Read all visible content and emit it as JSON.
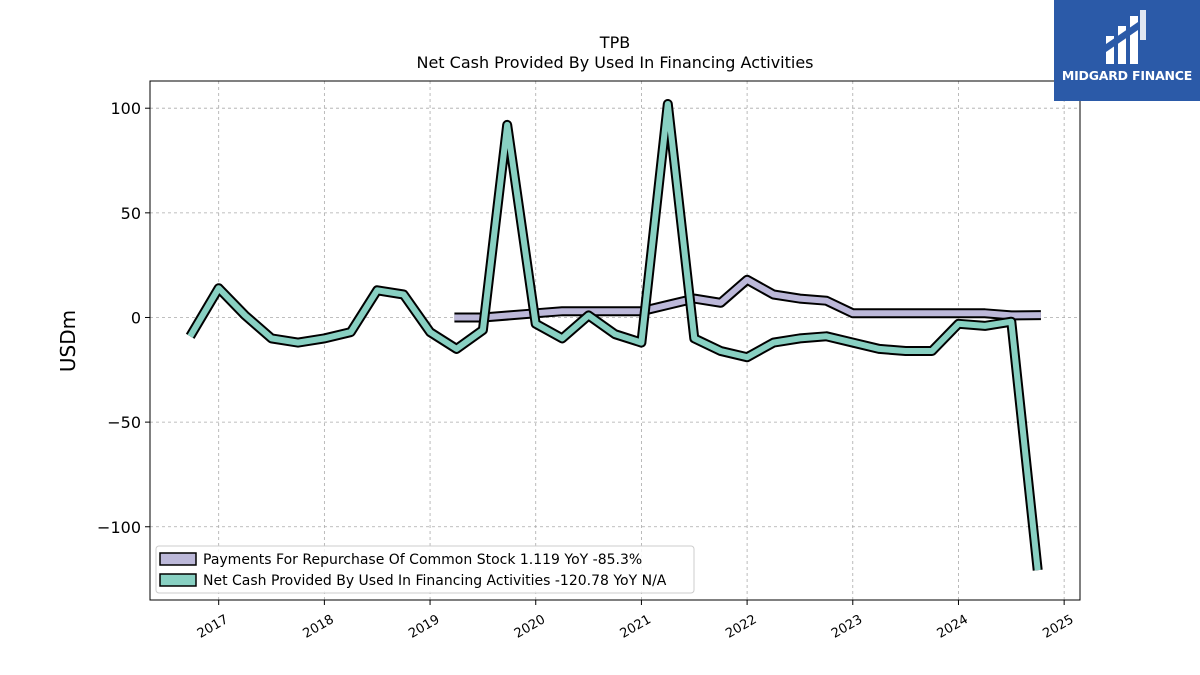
{
  "chart_data": {
    "type": "line",
    "title": "TPB",
    "subtitle": "Net Cash Provided By Used In Financing Activities",
    "ylabel": "USDm",
    "ylim": [
      -135,
      113
    ],
    "xlim": [
      2016.35,
      2025.15
    ],
    "yticks": [
      100,
      50,
      0,
      -50,
      -100
    ],
    "ytick_labels": [
      "100",
      "50",
      "0",
      "−50",
      "−100"
    ],
    "xticks": [
      2017,
      2018,
      2019,
      2020,
      2021,
      2022,
      2023,
      2024,
      2025
    ],
    "xtick_labels": [
      "2017",
      "2018",
      "2019",
      "2020",
      "2021",
      "2022",
      "2023",
      "2024",
      "2025"
    ],
    "grid": true,
    "legend_position": "lower-left",
    "series": [
      {
        "name": "Payments For Repurchase Of Common Stock",
        "legend_label": "Payments For Repurchase Of Common Stock  1.119 YoY -85.3%",
        "color": "#bcb8d9",
        "x": [
          2019.23,
          2019.5,
          2019.75,
          2020.0,
          2020.25,
          2020.5,
          2020.75,
          2021.0,
          2021.25,
          2021.5,
          2021.75,
          2022.0,
          2022.25,
          2022.5,
          2022.75,
          2023.0,
          2023.25,
          2023.5,
          2023.75,
          2024.0,
          2024.25,
          2024.5,
          2024.78
        ],
        "y": [
          0,
          0,
          1,
          2,
          3,
          3,
          3,
          3,
          6,
          9,
          7,
          18,
          11,
          9,
          8,
          2,
          2,
          2,
          2,
          2,
          2,
          1,
          1.119
        ]
      },
      {
        "name": "Net Cash Provided By Used In Financing Activities",
        "legend_label": "Net Cash Provided By Used In Financing Activities  -120.78 YoY N/A",
        "color": "#88d0c2",
        "x": [
          2016.73,
          2017.0,
          2017.25,
          2017.5,
          2017.75,
          2018.0,
          2018.25,
          2018.5,
          2018.75,
          2019.0,
          2019.25,
          2019.5,
          2019.73,
          2020.0,
          2020.25,
          2020.5,
          2020.75,
          2021.0,
          2021.25,
          2021.5,
          2021.75,
          2022.0,
          2022.25,
          2022.5,
          2022.75,
          2023.0,
          2023.25,
          2023.5,
          2023.75,
          2024.0,
          2024.25,
          2024.5,
          2024.75
        ],
        "y": [
          -9,
          14,
          1,
          -10,
          -12,
          -10,
          -7,
          13,
          11,
          -7,
          -15,
          -6,
          92,
          -3,
          -10,
          1,
          -8,
          -12,
          102,
          -10,
          -16,
          -19,
          -12,
          -10,
          -9,
          -12,
          -15,
          -16,
          -16,
          -3,
          -4,
          -2,
          -120.78
        ]
      }
    ]
  },
  "logo": {
    "brand": "MIDGARD FINANCE",
    "background": "#2b5aa8",
    "text_color": "#ffffff"
  }
}
